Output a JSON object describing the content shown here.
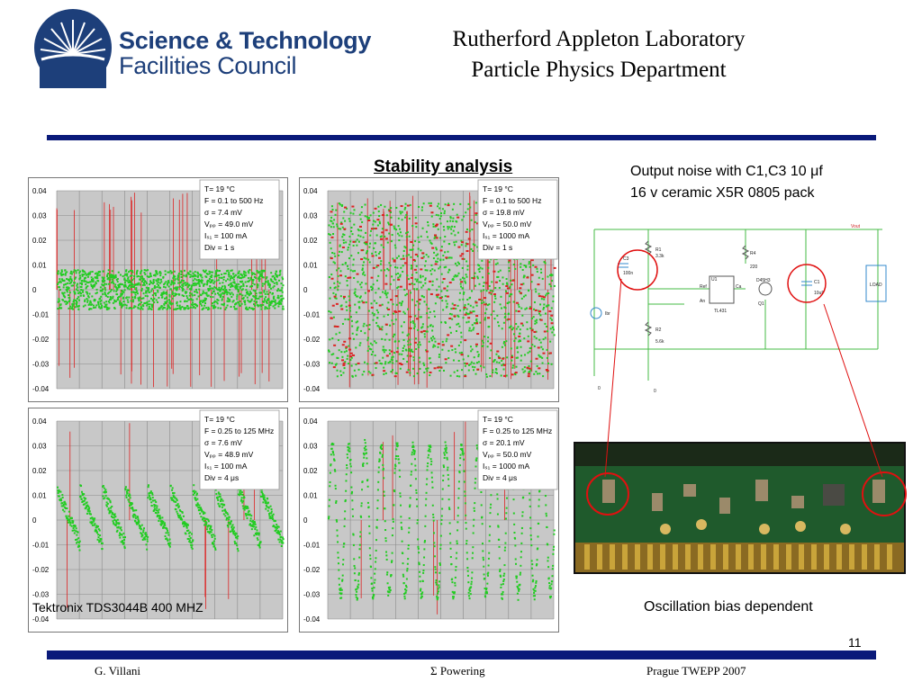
{
  "logo": {
    "line1": "Science & Technology",
    "line2": "Facilities Council"
  },
  "header": {
    "line1": "Rutherford Appleton Laboratory",
    "line2": "Particle Physics Department"
  },
  "slide": {
    "title": "Stability analysis",
    "note_line1": "Output noise with C1,C3 10 μf",
    "note_line2": "16 v ceramic X5R 0805 pack",
    "oscillation_caption": "Oscillation bias dependent",
    "scope_caption": "Tektronix TDS3044B 400 MHZ",
    "page_number": "11"
  },
  "footer": {
    "left": "G. Villani",
    "center": "Σ Powering",
    "right": "Prague TWEPP 2007"
  },
  "plots": [
    {
      "info": [
        "T= 19 °C",
        "F = 0.1 to 500 Hz",
        "σ = 7.4 mV",
        "Vₚₚ = 49.0 mV",
        "Iₛ₁ = 100 mA",
        "Div = 1 s"
      ]
    },
    {
      "info": [
        "T= 19 °C",
        "F = 0.1 to 500 Hz",
        "σ = 19.8 mV",
        "Vₚₚ = 50.0 mV",
        "Iₛ₁ = 1000 mA",
        "Div = 1 s"
      ]
    },
    {
      "info": [
        "T= 19 °C",
        "F = 0.25 to 125 MHz",
        "σ = 7.6 mV",
        "Vₚₚ = 48.9 mV",
        "Iₛ₁ = 100 mA",
        "Div = 4 μs"
      ]
    },
    {
      "info": [
        "T= 19 °C",
        "F = 0.25 to 125 MHz",
        "σ = 20.1 mV",
        "Vₚₚ = 50.0 mV",
        "Iₛ₁ = 1000 mA",
        "Div = 4 μs"
      ]
    }
  ],
  "y_ticks": [
    "0.04",
    "0.03",
    "0.02",
    "0.01",
    "0",
    "-0.01",
    "-0.02",
    "-0.03",
    "-0.04"
  ],
  "schematic": {
    "labels": [
      "Vout",
      "R1",
      "3.3k",
      "C3",
      "100n",
      "R4",
      "220",
      "U1",
      "Ref",
      "Ca",
      "An",
      "TL431",
      "D45H3",
      "Q1",
      "C1",
      "10uF",
      "LOAD",
      "R2",
      "5.6k",
      "Ibr",
      "0",
      "0"
    ]
  },
  "colors": {
    "navy": "#0a1a7a",
    "trace": "#22cc22",
    "spike": "#dd2222",
    "circle": "#e01010"
  }
}
